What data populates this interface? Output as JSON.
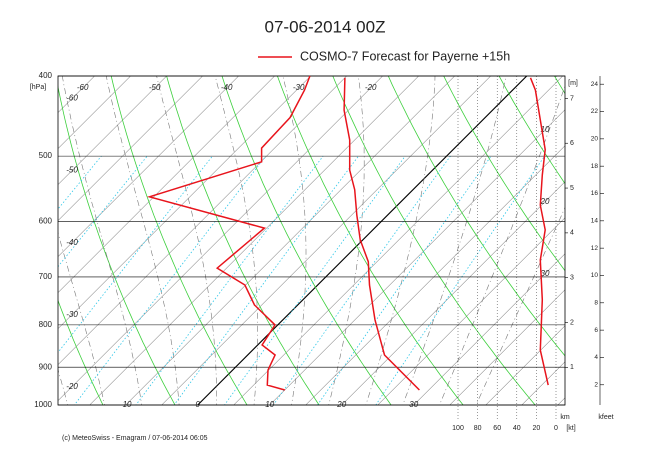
{
  "chart_data": {
    "type": "emagram",
    "title": "07-06-2014  00Z",
    "legend_label": "COSMO-7 Forecast for Payerne   +15h",
    "legend_color": "#e8141c",
    "footer": "(c) MeteoSwiss - Emagram  /  07-06-2014  06:05",
    "y_unit_label": "[hPa]",
    "height_unit_label": "[m]",
    "km_label": "km",
    "kfeet_label": "kfeet",
    "wind_unit_label": "[kt]",
    "log_y": true,
    "ylim": [
      1000,
      400
    ],
    "yticks": [
      400,
      500,
      600,
      700,
      800,
      900,
      1000
    ],
    "xlim": [
      -19.4,
      51
    ],
    "xticks_top": [
      -60,
      -50,
      -40,
      -30,
      -20
    ],
    "xticks_left": [
      -60,
      -50,
      -40,
      -30,
      -20
    ],
    "xticks_bottom": [
      -10,
      0,
      10,
      20,
      30
    ],
    "xticks_right": [
      10,
      20,
      30
    ],
    "height_lim": [
      0.16,
      7.5
    ],
    "height_ticks": [
      1,
      2,
      3,
      4,
      5,
      6,
      7
    ],
    "kfeet_lim": [
      0.52,
      24.6
    ],
    "kfeet_ticks": [
      2,
      4,
      6,
      8,
      10,
      12,
      14,
      16,
      18,
      20,
      22,
      24
    ],
    "wind_lim": [
      100,
      0
    ],
    "wind_ticks": [
      100,
      80,
      60,
      40,
      20,
      0
    ],
    "series": [
      {
        "color": "#e8141c",
        "x": [
          28.7,
          19.0,
          12.8,
          7.2,
          3.8,
          -0.4,
          -4.3,
          -8.1,
          -11.5,
          -15.7,
          -20.6,
          -25.0
        ],
        "y": [
          959,
          870,
          789,
          716,
          671,
          631,
          589,
          549,
          520,
          478,
          440,
          402
        ]
      },
      {
        "color": "#e8141c",
        "x": [
          10.0,
          6.9,
          4.9,
          3.8,
          0.6,
          -0.4,
          -6.0,
          -10.1,
          -16.3,
          -15.3,
          -35.6,
          -24.9,
          -26.8,
          -27.1,
          -28.9,
          -30.1
        ],
        "y": [
          959,
          946,
          907,
          870,
          846,
          800,
          757,
          716,
          683,
          611,
          560,
          508,
          489,
          449,
          416,
          400
        ]
      },
      {
        "color": "#e8141c",
        "axis": "wind",
        "x": [
          8,
          16,
          14,
          16,
          11,
          16,
          14,
          11,
          16,
          21,
          26
        ],
        "y": [
          946,
          858,
          746,
          668,
          614,
          573,
          527,
          491,
          452,
          416,
          402
        ]
      }
    ]
  }
}
